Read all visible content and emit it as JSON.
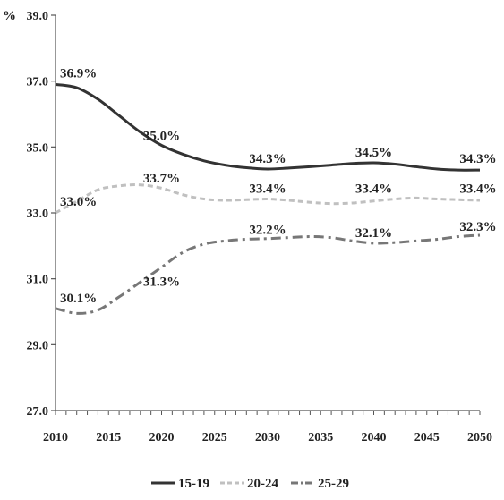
{
  "chart_data": {
    "type": "line",
    "title": "",
    "xlabel": "",
    "ylabel": "%",
    "xlim": [
      2010,
      2050
    ],
    "ylim": [
      27.0,
      39.0
    ],
    "x_ticks": [
      "2010",
      "2015",
      "2020",
      "2025",
      "2030",
      "2035",
      "2040",
      "2045",
      "2050"
    ],
    "y_ticks": [
      "27.0",
      "29.0",
      "31.0",
      "33.0",
      "35.0",
      "37.0",
      "39.0"
    ],
    "grid": false,
    "legend_position": "bottom",
    "x": [
      2010,
      2012,
      2014,
      2016,
      2018,
      2020,
      2022,
      2024,
      2026,
      2028,
      2030,
      2032,
      2034,
      2036,
      2038,
      2040,
      2042,
      2044,
      2046,
      2048,
      2050
    ],
    "series": [
      {
        "name": "15-19",
        "color": "#333333",
        "dash": "solid",
        "values": [
          36.9,
          36.8,
          36.45,
          35.95,
          35.45,
          35.05,
          34.78,
          34.58,
          34.45,
          34.37,
          34.33,
          34.36,
          34.4,
          34.45,
          34.5,
          34.52,
          34.48,
          34.4,
          34.33,
          34.3,
          34.3
        ]
      },
      {
        "name": "20-24",
        "color": "#c0c0c0",
        "dash": "dashed",
        "values": [
          33.0,
          33.35,
          33.7,
          33.82,
          33.85,
          33.75,
          33.55,
          33.42,
          33.38,
          33.4,
          33.42,
          33.38,
          33.32,
          33.28,
          33.3,
          33.36,
          33.42,
          33.45,
          33.42,
          33.4,
          33.38
        ]
      },
      {
        "name": "25-29",
        "color": "#777777",
        "dash": "dashdot",
        "values": [
          30.1,
          29.95,
          30.05,
          30.45,
          30.9,
          31.35,
          31.8,
          32.05,
          32.15,
          32.2,
          32.22,
          32.25,
          32.28,
          32.25,
          32.15,
          32.08,
          32.1,
          32.15,
          32.2,
          32.28,
          32.32
        ]
      }
    ],
    "annotations": [
      {
        "series": "15-19",
        "x": 2010,
        "y": 36.9,
        "text": "36.9%"
      },
      {
        "series": "15-19",
        "x": 2020,
        "y": 35.0,
        "text": "35.0%"
      },
      {
        "series": "15-19",
        "x": 2030,
        "y": 34.3,
        "text": "34.3%"
      },
      {
        "series": "15-19",
        "x": 2040,
        "y": 34.5,
        "text": "34.5%"
      },
      {
        "series": "15-19",
        "x": 2050,
        "y": 34.3,
        "text": "34.3%"
      },
      {
        "series": "20-24",
        "x": 2010,
        "y": 33.0,
        "text": "33.0%"
      },
      {
        "series": "20-24",
        "x": 2020,
        "y": 33.7,
        "text": "33.7%"
      },
      {
        "series": "20-24",
        "x": 2030,
        "y": 33.4,
        "text": "33.4%"
      },
      {
        "series": "20-24",
        "x": 2040,
        "y": 33.4,
        "text": "33.4%"
      },
      {
        "series": "20-24",
        "x": 2050,
        "y": 33.4,
        "text": "33.4%"
      },
      {
        "series": "25-29",
        "x": 2010,
        "y": 30.1,
        "text": "30.1%"
      },
      {
        "series": "25-29",
        "x": 2020,
        "y": 31.3,
        "text": "31.3%"
      },
      {
        "series": "25-29",
        "x": 2030,
        "y": 32.2,
        "text": "32.2%"
      },
      {
        "series": "25-29",
        "x": 2040,
        "y": 32.1,
        "text": "32.1%"
      },
      {
        "series": "25-29",
        "x": 2050,
        "y": 32.3,
        "text": "32.3%"
      }
    ]
  }
}
